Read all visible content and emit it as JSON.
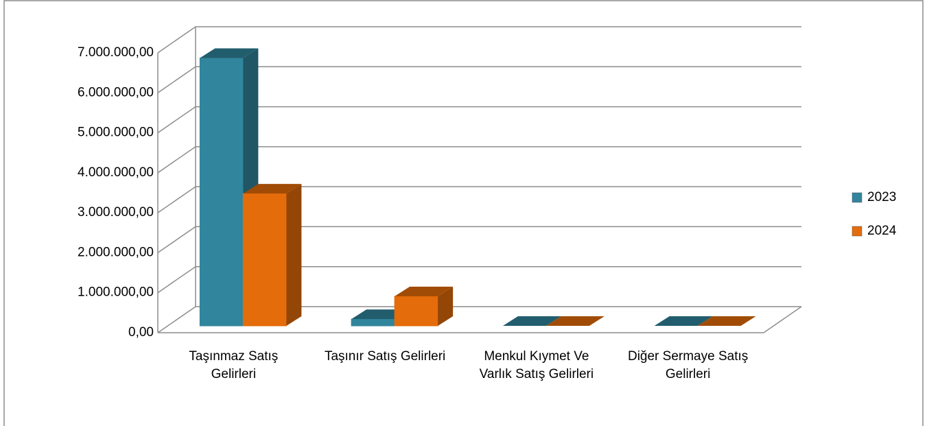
{
  "chart_data": {
    "type": "bar3d",
    "categories": [
      "Taşınmaz Satış Gelirleri",
      "Taşınır Satış Gelirleri",
      "Menkul Kıymet Ve Varlık Satış Gelirleri",
      "Diğer Sermaye Satış Gelirleri"
    ],
    "series": [
      {
        "name": "2023",
        "color": "#31859c",
        "values": [
          6700000,
          170000,
          0,
          0
        ]
      },
      {
        "name": "2024",
        "color": "#e46c0a",
        "values": [
          3310000,
          740000,
          0,
          0
        ]
      }
    ],
    "ylim": [
      0,
      7000000
    ],
    "yticks": [
      {
        "value": 0,
        "label": "0,00"
      },
      {
        "value": 1000000,
        "label": "1.000.000,00"
      },
      {
        "value": 2000000,
        "label": "2.000.000,00"
      },
      {
        "value": 3000000,
        "label": "3.000.000,00"
      },
      {
        "value": 4000000,
        "label": "4.000.000,00"
      },
      {
        "value": 5000000,
        "label": "5.000.000,00"
      },
      {
        "value": 6000000,
        "label": "6.000.000,00"
      },
      {
        "value": 7000000,
        "label": "7.000.000,00"
      }
    ],
    "grid": true,
    "legend": "right"
  }
}
